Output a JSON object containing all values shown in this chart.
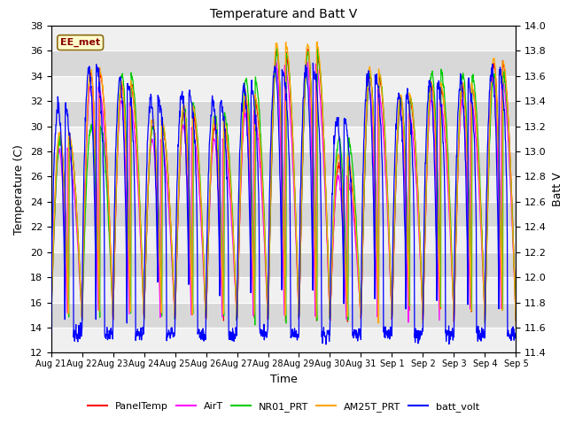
{
  "title": "Temperature and Batt V",
  "xlabel": "Time",
  "ylabel_left": "Temperature (C)",
  "ylabel_right": "Batt V",
  "annotation": "EE_met",
  "ylim_left": [
    12,
    38
  ],
  "ylim_right": [
    11.4,
    14.0
  ],
  "legend_labels": [
    "PanelTemp",
    "AirT",
    "NR01_PRT",
    "AM25T_PRT",
    "batt_volt"
  ],
  "legend_colors": [
    "#ff0000",
    "#ff00ff",
    "#00cc00",
    "#ffa500",
    "#0000ff"
  ],
  "background_color": "#ffffff",
  "plot_bg_light": "#f0f0f0",
  "plot_bg_dark": "#d8d8d8",
  "x_ticks": [
    "Aug 21",
    "Aug 22",
    "Aug 23",
    "Aug 24",
    "Aug 25",
    "Aug 26",
    "Aug 27",
    "Aug 28",
    "Aug 29",
    "Aug 30",
    "Aug 31",
    "Sep 1",
    "Sep 2",
    "Sep 3",
    "Sep 4",
    "Sep 5"
  ],
  "n_days": 15,
  "grid_color": "#ffffff",
  "annotation_text_color": "#8B0000",
  "annotation_bg": "#ffffcc",
  "annotation_edge": "#8B6914"
}
